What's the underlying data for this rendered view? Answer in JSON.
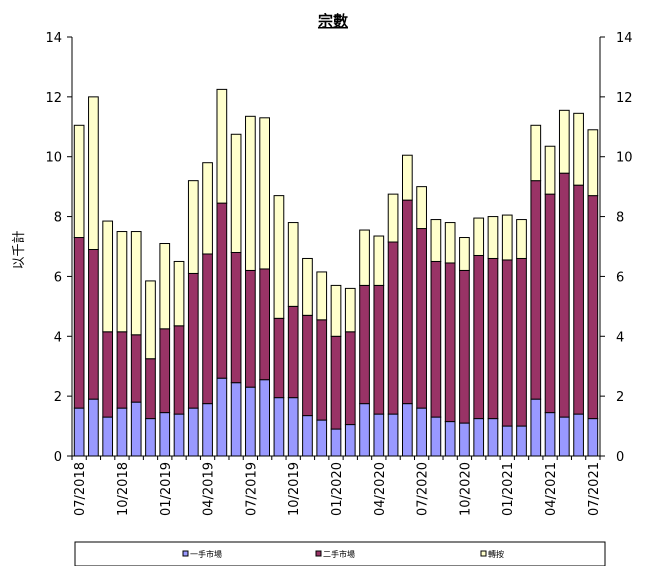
{
  "chart_data": {
    "type": "bar",
    "stacked": true,
    "title": "宗數",
    "ylabel": "以千計",
    "xlabel": "",
    "ylim": [
      0,
      14
    ],
    "yticks": [
      0,
      2,
      4,
      6,
      8,
      10,
      12,
      14
    ],
    "secondary_y_axis": true,
    "grid": false,
    "legend_position": "bottom",
    "categories": [
      "07/2018",
      "08/2018",
      "09/2018",
      "10/2018",
      "11/2018",
      "12/2018",
      "01/2019",
      "02/2019",
      "03/2019",
      "04/2019",
      "05/2019",
      "06/2019",
      "07/2019",
      "08/2019",
      "09/2019",
      "10/2019",
      "11/2019",
      "12/2019",
      "01/2020",
      "02/2020",
      "03/2020",
      "04/2020",
      "05/2020",
      "06/2020",
      "07/2020",
      "08/2020",
      "09/2020",
      "10/2020",
      "11/2020",
      "12/2020",
      "01/2021",
      "02/2021",
      "03/2021",
      "04/2021",
      "05/2021",
      "06/2021",
      "07/2021"
    ],
    "tick_labels": [
      "07/2018",
      "10/2018",
      "01/2019",
      "04/2019",
      "07/2019",
      "10/2019",
      "01/2020",
      "04/2020",
      "07/2020",
      "10/2020",
      "01/2021",
      "04/2021",
      "07/2021"
    ],
    "series": [
      {
        "name": "一手市場",
        "color": "#9999ff",
        "values": [
          1.6,
          1.9,
          1.3,
          1.6,
          1.8,
          1.25,
          1.45,
          1.4,
          1.6,
          1.75,
          2.6,
          2.45,
          2.3,
          2.55,
          1.95,
          1.95,
          1.35,
          1.2,
          0.9,
          1.05,
          1.75,
          1.4,
          1.4,
          1.75,
          1.6,
          1.3,
          1.15,
          1.1,
          1.25,
          1.25,
          1.0,
          1.0,
          1.9,
          1.45,
          1.3,
          1.4,
          1.25
        ]
      },
      {
        "name": "二手市場",
        "color": "#993366",
        "values": [
          5.7,
          5.0,
          2.85,
          2.55,
          2.25,
          2.0,
          2.8,
          2.95,
          4.5,
          5.0,
          5.85,
          4.35,
          3.9,
          3.7,
          2.65,
          3.05,
          3.35,
          3.35,
          3.1,
          3.1,
          3.95,
          4.3,
          5.75,
          6.8,
          6.0,
          5.2,
          5.3,
          5.1,
          5.45,
          5.35,
          5.55,
          5.6,
          7.3,
          7.3,
          8.15,
          7.65,
          7.45
        ]
      },
      {
        "name": "轉按",
        "color": "#ffffcc",
        "values": [
          3.75,
          5.1,
          3.7,
          3.35,
          3.45,
          2.6,
          2.85,
          2.15,
          3.1,
          3.05,
          3.8,
          3.95,
          5.15,
          5.05,
          4.1,
          2.8,
          1.9,
          1.6,
          1.7,
          1.45,
          1.85,
          1.65,
          1.6,
          1.5,
          1.4,
          1.4,
          1.35,
          1.1,
          1.25,
          1.4,
          1.5,
          1.3,
          1.85,
          1.6,
          2.1,
          2.4,
          2.2
        ]
      }
    ]
  }
}
